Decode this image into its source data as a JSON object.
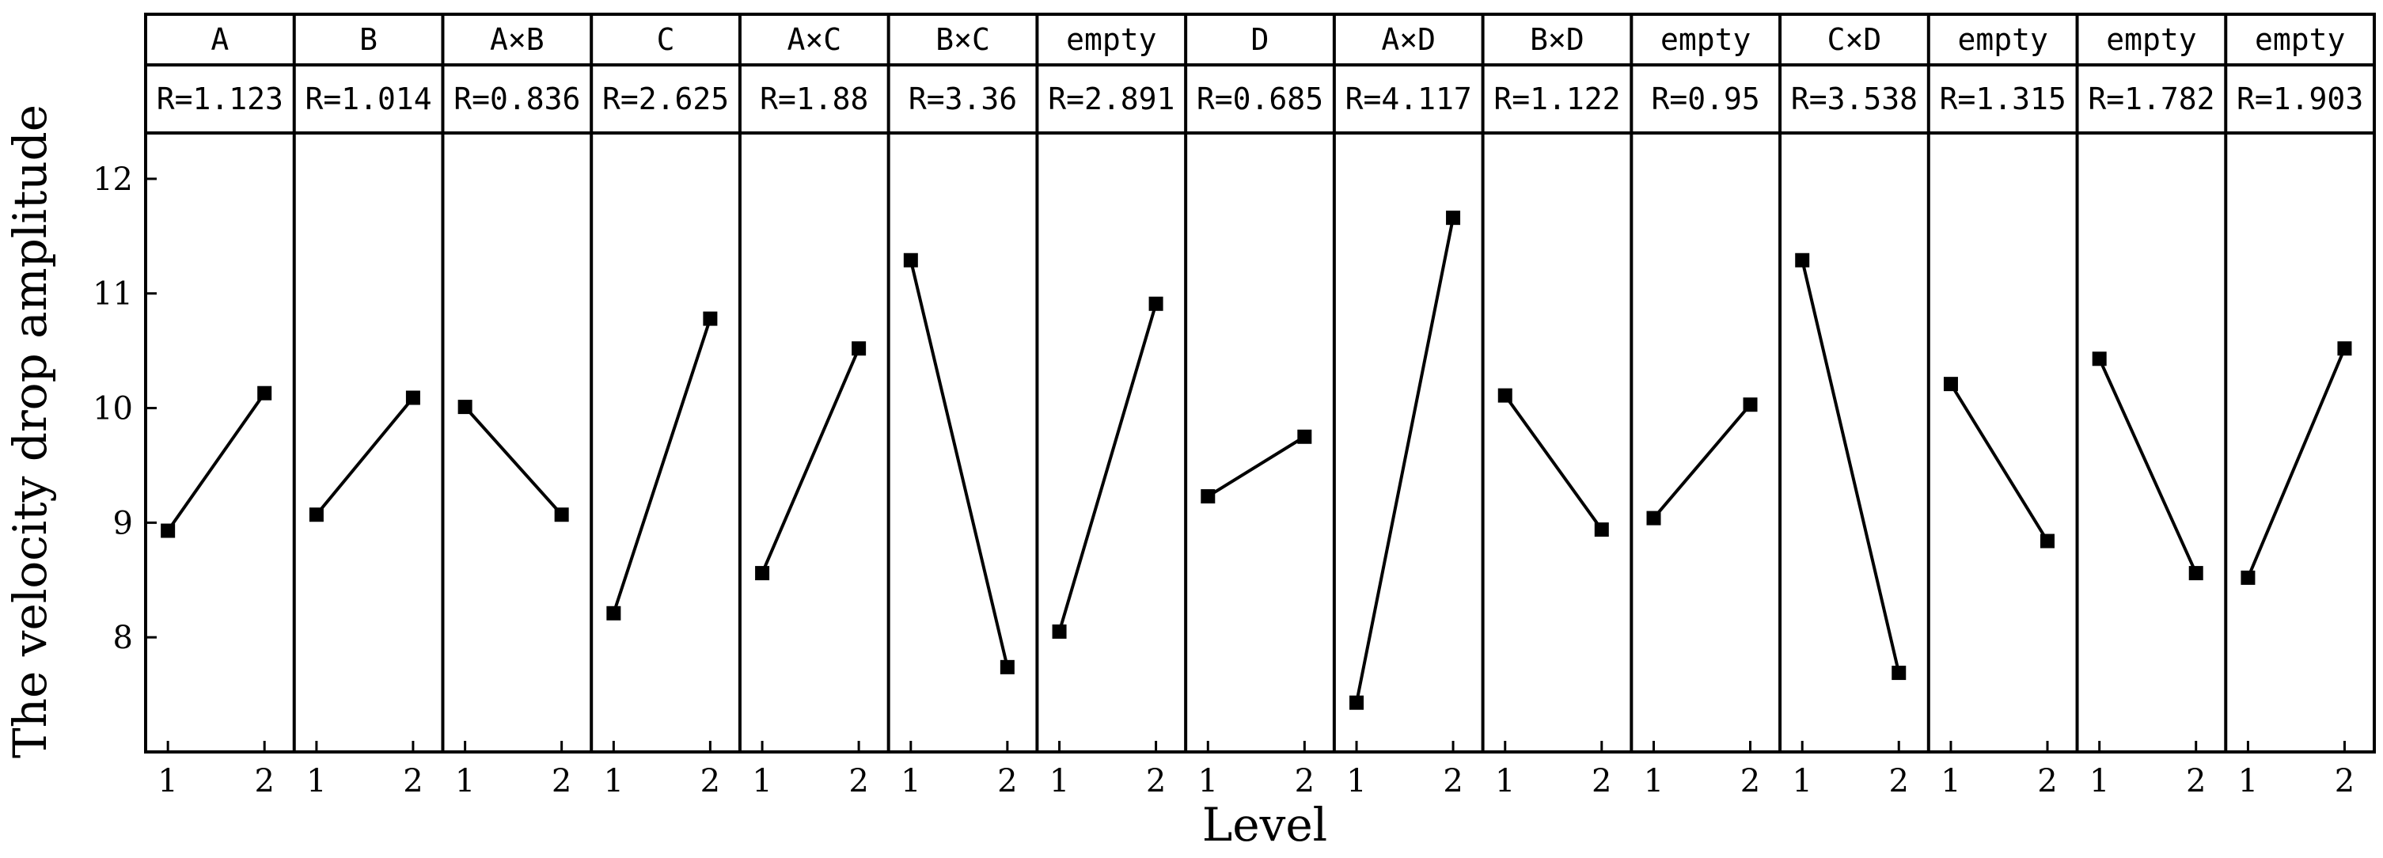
{
  "chart_data": {
    "type": "line",
    "ylabel": "The velocity drop amplitude",
    "xlabel": "Level",
    "ylim": [
      7.0,
      12.4
    ],
    "y_ticks": [
      8,
      9,
      10,
      11,
      12
    ],
    "x_ticks": [
      "1",
      "2"
    ],
    "panels": [
      {
        "factor": "A",
        "range_label": "R=1.123",
        "values": [
          8.93,
          10.13
        ]
      },
      {
        "factor": "B",
        "range_label": "R=1.014",
        "values": [
          9.07,
          10.09
        ]
      },
      {
        "factor": "A×B",
        "range_label": "R=0.836",
        "values": [
          10.01,
          9.07
        ]
      },
      {
        "factor": "C",
        "range_label": "R=2.625",
        "values": [
          8.21,
          10.78
        ]
      },
      {
        "factor": "A×C",
        "range_label": "R=1.88",
        "values": [
          8.56,
          10.52
        ]
      },
      {
        "factor": "B×C",
        "range_label": "R=3.36",
        "values": [
          11.29,
          7.74
        ]
      },
      {
        "factor": "empty",
        "range_label": "R=2.891",
        "values": [
          8.05,
          10.91
        ]
      },
      {
        "factor": "D",
        "range_label": "R=0.685",
        "values": [
          9.23,
          9.75
        ]
      },
      {
        "factor": "A×D",
        "range_label": "R=4.117",
        "values": [
          7.43,
          11.66
        ]
      },
      {
        "factor": "B×D",
        "range_label": "R=1.122",
        "values": [
          10.11,
          8.94
        ]
      },
      {
        "factor": "empty",
        "range_label": "R=0.95",
        "values": [
          9.04,
          10.03
        ]
      },
      {
        "factor": "C×D",
        "range_label": "R=3.538",
        "values": [
          11.29,
          7.69
        ]
      },
      {
        "factor": "empty",
        "range_label": "R=1.315",
        "values": [
          10.21,
          8.84
        ]
      },
      {
        "factor": "empty",
        "range_label": "R=1.782",
        "values": [
          10.43,
          8.56
        ]
      },
      {
        "factor": "empty",
        "range_label": "R=1.903",
        "values": [
          8.52,
          10.52
        ]
      }
    ]
  }
}
